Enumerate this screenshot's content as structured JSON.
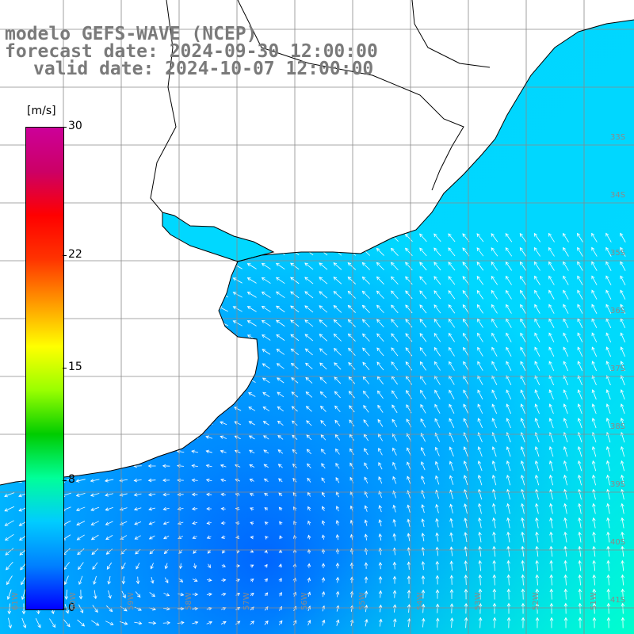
{
  "title": {
    "model": "modelo GEFS-WAVE (NCEP)",
    "forecast": "forecast date: 2024-09-30 12:00:00",
    "valid": "valid date: 2024-10-07 12:00:00"
  },
  "colorbar": {
    "unit": "[m/s]",
    "ticks": [
      "30",
      "22",
      "15",
      "8",
      "0"
    ],
    "range": [
      0,
      30
    ],
    "colors": [
      "#0000ff",
      "#0080ff",
      "#00ccff",
      "#00ff99",
      "#00cc00",
      "#99ff00",
      "#ffff00",
      "#ff9900",
      "#ff3300",
      "#ff0000",
      "#cc0066",
      "#cc0099"
    ]
  },
  "map": {
    "lat_labels": [
      "33S",
      "34S",
      "35S",
      "36S",
      "37S",
      "38S",
      "39S",
      "40S",
      "41S"
    ],
    "lon_labels": [
      "61W",
      "60W",
      "59W",
      "58W",
      "57W",
      "56W",
      "55W",
      "54W",
      "53W",
      "52W",
      "51W"
    ],
    "ocean_colors": {
      "deep_blue": "#0030ff",
      "mid_blue": "#0070ff",
      "light_blue": "#00a8ff",
      "cyan": "#00d8ff",
      "aqua": "#00ffcc"
    },
    "land_color": "#ffffff",
    "grid_color": "#8a8a8a",
    "coast_color": "#000000",
    "arrow_color": "#ffffff"
  }
}
